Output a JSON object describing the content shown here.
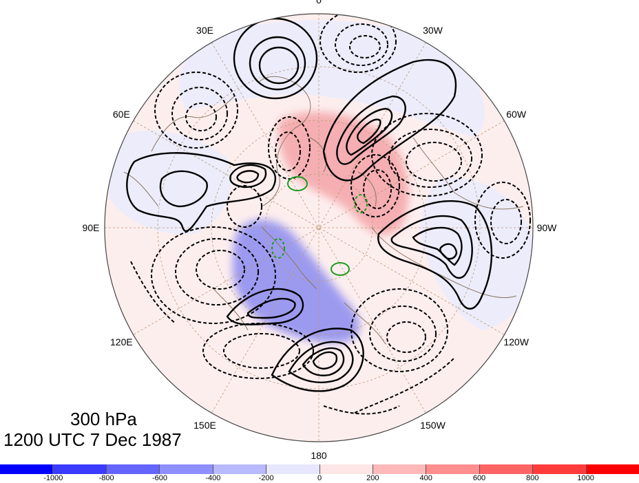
{
  "caption": {
    "level": "300 hPa",
    "time": "1200 UTC 7 Dec 1987"
  },
  "longitude_labels": [
    {
      "text": "0",
      "lon": 0
    },
    {
      "text": "30W",
      "lon": -30
    },
    {
      "text": "60W",
      "lon": -60
    },
    {
      "text": "90W",
      "lon": -90
    },
    {
      "text": "120W",
      "lon": -120
    },
    {
      "text": "150W",
      "lon": -150
    },
    {
      "text": "180",
      "lon": 180
    },
    {
      "text": "150E",
      "lon": 150
    },
    {
      "text": "120E",
      "lon": 120
    },
    {
      "text": "90E",
      "lon": 90
    },
    {
      "text": "60E",
      "lon": 60
    },
    {
      "text": "30E",
      "lon": 30
    }
  ],
  "colorbar": {
    "ticks": [
      "-1000",
      "-800",
      "-600",
      "-400",
      "-200",
      "0",
      "200",
      "400",
      "600",
      "800",
      "1000"
    ],
    "colors": [
      "#0000ff",
      "#3b3bff",
      "#6464ff",
      "#8e8eff",
      "#b9b9ff",
      "#e6e6ff",
      "#ffe6e6",
      "#ffb9b9",
      "#ff8e8e",
      "#ff6464",
      "#ff3b3b",
      "#ff0000"
    ]
  },
  "colors": {
    "positive_contour": "#000000",
    "negative_contour": "#000000",
    "special_contour": "#1a9a1a",
    "coastline": "#8a7560",
    "grid": "#b89870"
  }
}
